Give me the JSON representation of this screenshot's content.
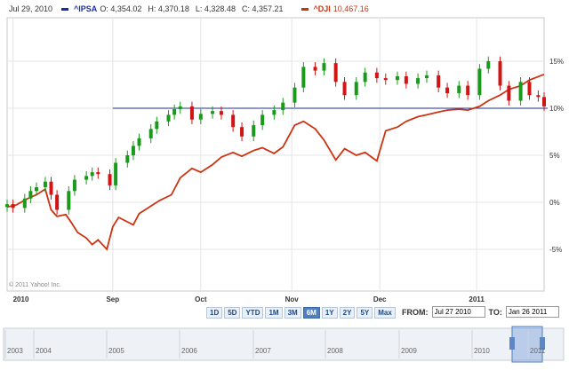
{
  "legend": {
    "date": "Jul 29, 2010",
    "series1_name": "^IPSA",
    "series1_open": "O: 4,354.02",
    "series1_high": "H: 4,370.18",
    "series1_low": "L: 4,328.48",
    "series1_close": "C: 4,357.21",
    "series2_name": "^DJI",
    "series2_value": "10,467.16"
  },
  "copyright": "© 2011 Yahoo! Inc.",
  "range_buttons": [
    "1D",
    "5D",
    "YTD",
    "1M",
    "3M",
    "6M",
    "1Y",
    "2Y",
    "5Y",
    "Max"
  ],
  "active_range": "6M",
  "from_label": "FROM:",
  "from_value": "Jul 27 2010",
  "to_label": "TO:",
  "to_value": "Jan 26 2011",
  "colors": {
    "ipsa_up": "#1a9a1a",
    "ipsa_down": "#d11515",
    "dji": "#cc3311",
    "ref_line": "#1a2ea0",
    "grid": "#e4e4e4"
  },
  "chart_data": {
    "type": "line",
    "title": "",
    "xlabel": "",
    "ylabel": "",
    "y_unit": "% change",
    "ylim": [
      -8,
      17
    ],
    "y_ticks": [
      -5,
      0,
      5,
      10,
      15
    ],
    "y_tick_labels": [
      "-5%",
      "0%",
      "5%",
      "10%",
      "15%"
    ],
    "x_tick_labels": [
      "2010",
      "Sep",
      "Oct",
      "Nov",
      "Dec",
      "2011"
    ],
    "x_tick_dates": [
      "2010-07-29",
      "2010-09-01",
      "2010-10-01",
      "2010-11-01",
      "2010-12-01",
      "2011-01-03"
    ],
    "date_range": [
      "2010-07-27",
      "2011-01-26"
    ],
    "reference_line": {
      "y": 10,
      "label": "10%"
    },
    "grid": true,
    "legend_position": "top-left",
    "series": [
      {
        "name": "^DJI",
        "style": "line",
        "points": [
          [
            "2010-07-27",
            -0.5
          ],
          [
            "2010-07-30",
            -0.3
          ],
          [
            "2010-08-03",
            0.4
          ],
          [
            "2010-08-06",
            0.8
          ],
          [
            "2010-08-09",
            1.4
          ],
          [
            "2010-08-11",
            -0.8
          ],
          [
            "2010-08-13",
            -1.5
          ],
          [
            "2010-08-16",
            -1.3
          ],
          [
            "2010-08-18",
            -2.2
          ],
          [
            "2010-08-20",
            -3.2
          ],
          [
            "2010-08-23",
            -3.8
          ],
          [
            "2010-08-25",
            -4.5
          ],
          [
            "2010-08-27",
            -4.0
          ],
          [
            "2010-08-30",
            -5.0
          ],
          [
            "2010-09-01",
            -2.6
          ],
          [
            "2010-09-03",
            -1.6
          ],
          [
            "2010-09-08",
            -2.4
          ],
          [
            "2010-09-10",
            -1.2
          ],
          [
            "2010-09-14",
            -0.4
          ],
          [
            "2010-09-17",
            0.2
          ],
          [
            "2010-09-21",
            0.8
          ],
          [
            "2010-09-24",
            2.6
          ],
          [
            "2010-09-28",
            3.6
          ],
          [
            "2010-10-01",
            3.2
          ],
          [
            "2010-10-05",
            4.0
          ],
          [
            "2010-10-08",
            4.8
          ],
          [
            "2010-10-12",
            5.3
          ],
          [
            "2010-10-15",
            4.9
          ],
          [
            "2010-10-19",
            5.5
          ],
          [
            "2010-10-22",
            5.8
          ],
          [
            "2010-10-26",
            5.2
          ],
          [
            "2010-10-29",
            5.9
          ],
          [
            "2010-11-02",
            8.2
          ],
          [
            "2010-11-05",
            8.6
          ],
          [
            "2010-11-09",
            7.8
          ],
          [
            "2010-11-12",
            6.6
          ],
          [
            "2010-11-16",
            4.5
          ],
          [
            "2010-11-19",
            5.7
          ],
          [
            "2010-11-23",
            5.0
          ],
          [
            "2010-11-26",
            5.3
          ],
          [
            "2010-11-30",
            4.4
          ],
          [
            "2010-12-03",
            7.6
          ],
          [
            "2010-12-07",
            8.0
          ],
          [
            "2010-12-10",
            8.6
          ],
          [
            "2010-12-14",
            9.1
          ],
          [
            "2010-12-17",
            9.3
          ],
          [
            "2010-12-21",
            9.6
          ],
          [
            "2010-12-24",
            9.8
          ],
          [
            "2010-12-28",
            9.9
          ],
          [
            "2010-12-31",
            9.8
          ],
          [
            "2011-01-04",
            10.2
          ],
          [
            "2011-01-07",
            10.8
          ],
          [
            "2011-01-11",
            11.4
          ],
          [
            "2011-01-14",
            12.0
          ],
          [
            "2011-01-18",
            12.4
          ],
          [
            "2011-01-21",
            13.0
          ],
          [
            "2011-01-26",
            13.6
          ]
        ]
      },
      {
        "name": "^IPSA",
        "style": "candlestick",
        "points": [
          [
            "2010-07-27",
            -0.2
          ],
          [
            "2010-07-29",
            -0.6
          ],
          [
            "2010-08-02",
            0.4
          ],
          [
            "2010-08-04",
            1.2
          ],
          [
            "2010-08-06",
            1.6
          ],
          [
            "2010-08-09",
            2.2
          ],
          [
            "2010-08-11",
            0.8
          ],
          [
            "2010-08-13",
            -0.8
          ],
          [
            "2010-08-17",
            1.2
          ],
          [
            "2010-08-19",
            2.4
          ],
          [
            "2010-08-23",
            2.8
          ],
          [
            "2010-08-25",
            3.2
          ],
          [
            "2010-08-27",
            3.0
          ],
          [
            "2010-08-31",
            1.8
          ],
          [
            "2010-09-02",
            4.2
          ],
          [
            "2010-09-06",
            5.0
          ],
          [
            "2010-09-08",
            6.0
          ],
          [
            "2010-09-10",
            6.8
          ],
          [
            "2010-09-14",
            7.8
          ],
          [
            "2010-09-16",
            8.6
          ],
          [
            "2010-09-20",
            9.3
          ],
          [
            "2010-09-22",
            9.9
          ],
          [
            "2010-09-24",
            10.2
          ],
          [
            "2010-09-28",
            8.8
          ],
          [
            "2010-10-01",
            9.4
          ],
          [
            "2010-10-05",
            9.7
          ],
          [
            "2010-10-08",
            9.3
          ],
          [
            "2010-10-12",
            8.0
          ],
          [
            "2010-10-15",
            7.0
          ],
          [
            "2010-10-19",
            8.2
          ],
          [
            "2010-10-22",
            9.3
          ],
          [
            "2010-10-26",
            9.8
          ],
          [
            "2010-10-29",
            10.6
          ],
          [
            "2010-11-02",
            12.2
          ],
          [
            "2010-11-05",
            14.4
          ],
          [
            "2010-11-09",
            14.0
          ],
          [
            "2010-11-12",
            14.8
          ],
          [
            "2010-11-16",
            12.8
          ],
          [
            "2010-11-19",
            11.4
          ],
          [
            "2010-11-23",
            12.8
          ],
          [
            "2010-11-26",
            13.8
          ],
          [
            "2010-11-30",
            13.2
          ],
          [
            "2010-12-03",
            13.0
          ],
          [
            "2010-12-07",
            13.4
          ],
          [
            "2010-12-10",
            12.6
          ],
          [
            "2010-12-14",
            13.2
          ],
          [
            "2010-12-17",
            13.5
          ],
          [
            "2010-12-21",
            12.2
          ],
          [
            "2010-12-24",
            11.6
          ],
          [
            "2010-12-28",
            12.4
          ],
          [
            "2010-12-31",
            11.4
          ],
          [
            "2011-01-04",
            14.2
          ],
          [
            "2011-01-07",
            15.0
          ],
          [
            "2011-01-11",
            12.4
          ],
          [
            "2011-01-14",
            10.8
          ],
          [
            "2011-01-18",
            12.8
          ],
          [
            "2011-01-21",
            11.4
          ],
          [
            "2011-01-24",
            11.2
          ],
          [
            "2011-01-26",
            10.2
          ]
        ]
      }
    ]
  },
  "navigator": {
    "years": [
      "2003",
      "2004",
      "2005",
      "2006",
      "2007",
      "2008",
      "2009",
      "2010",
      "2011"
    ]
  }
}
